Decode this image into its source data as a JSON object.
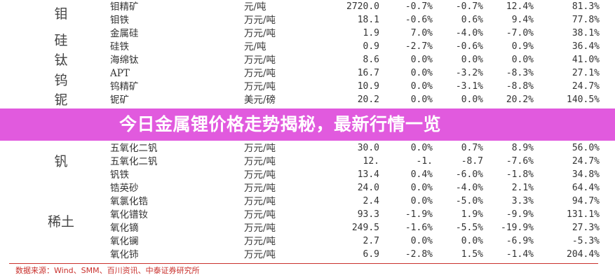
{
  "table": {
    "categories": [
      "钼",
      "硅",
      "钛",
      "钨",
      "铌",
      "钒",
      "稀土"
    ],
    "rows": [
      {
        "name": "钼精矿",
        "unit": "元/吨",
        "price": "2720.0",
        "c1": "-0.7%",
        "c2": "-0.7%",
        "c3": "12.4%",
        "c4": "81.3%"
      },
      {
        "name": "钼铁",
        "unit": "万元/吨",
        "price": "18.1",
        "c1": "-0.6%",
        "c2": "0.6%",
        "c3": "9.4%",
        "c4": "77.8%"
      },
      {
        "name": "金属硅",
        "unit": "万元/吨",
        "price": "1.9",
        "c1": "7.0%",
        "c2": "-4.0%",
        "c3": "-7.0%",
        "c4": "38.1%"
      },
      {
        "name": "硅铁",
        "unit": "元/吨",
        "price": "0.9",
        "c1": "-2.7%",
        "c2": "-0.6%",
        "c3": "0.9%",
        "c4": "36.4%"
      },
      {
        "name": "海绵钛",
        "unit": "万元/吨",
        "price": "8.6",
        "c1": "0.0%",
        "c2": "0.0%",
        "c3": "0.0%",
        "c4": "41.0%"
      },
      {
        "name": "APT",
        "unit": "万元/吨",
        "price": "16.7",
        "c1": "0.0%",
        "c2": "-3.2%",
        "c3": "-8.3%",
        "c4": "27.1%"
      },
      {
        "name": "钨精矿",
        "unit": "万元/吨",
        "price": "10.9",
        "c1": "0.0%",
        "c2": "-3.1%",
        "c3": "-8.8%",
        "c4": "24.7%"
      },
      {
        "name": "铌矿",
        "unit": "美元/磅",
        "price": "20.2",
        "c1": "0.0%",
        "c2": "0.0%",
        "c3": "20.2%",
        "c4": "140.5%"
      },
      {
        "name": "五氧化二钒",
        "unit": "万元/吨",
        "price": "30.0",
        "c1": "0.0%",
        "c2": "0.7%",
        "c3": "8.9%",
        "c4": "56.0%"
      },
      {
        "name": "五氧化二钒",
        "unit": "万元/吨",
        "price": "12.",
        "c1": "-1.",
        "c2": "-8.7",
        "c3": "-7.6%",
        "c4": "24.7%"
      },
      {
        "name": "钒铁",
        "unit": "万元/吨",
        "price": "13.4",
        "c1": "0.4%",
        "c2": "-6.0%",
        "c3": "-1.8%",
        "c4": "34.8%"
      },
      {
        "name": "锆英砂",
        "unit": "万元/吨",
        "price": "24.0",
        "c1": "0.0%",
        "c2": "-4.0%",
        "c3": "2.1%",
        "c4": "64.4%"
      },
      {
        "name": "氧氯化锆",
        "unit": "万元/吨",
        "price": "2.4",
        "c1": "0.0%",
        "c2": "-5.0%",
        "c3": "3.3%",
        "c4": "94.7%"
      },
      {
        "name": "氧化镨钕",
        "unit": "万元/吨",
        "price": "93.3",
        "c1": "-1.9%",
        "c2": "1.9%",
        "c3": "-9.9%",
        "c4": "131.1%"
      },
      {
        "name": "氧化镝",
        "unit": "万元/吨",
        "price": "249.5",
        "c1": "-1.6%",
        "c2": "-5.5%",
        "c3": "-19.9%",
        "c4": "27.3%"
      },
      {
        "name": "氧化镧",
        "unit": "万元/吨",
        "price": "2.7",
        "c1": "0.0%",
        "c2": "0.0%",
        "c3": "-6.9%",
        "c4": "-5.3%"
      },
      {
        "name": "氧化铈",
        "unit": "万元/吨",
        "price": "6.9",
        "c1": "-2.8%",
        "c2": "1.5%",
        "c3": "-1.4%",
        "c4": "204.4%"
      }
    ]
  },
  "banner": {
    "title": "今日金属锂价格走势揭秘，最新行情一览",
    "color": "#de48da"
  },
  "footer": {
    "source": "数据来源：Wind、SMM、百川资讯、中泰证券研究所",
    "color": "#c9302c"
  }
}
